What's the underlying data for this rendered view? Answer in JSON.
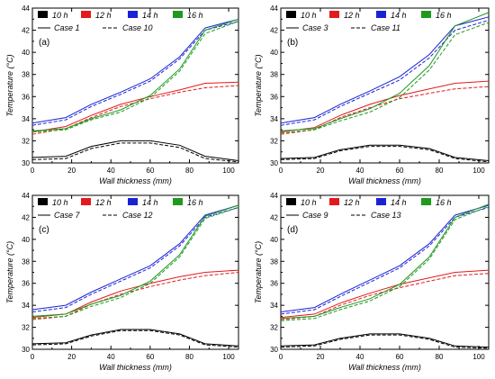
{
  "figure": {
    "colors": {
      "10 h": "#000000",
      "12 h": "#e31a1c",
      "14 h": "#1a22d6",
      "16 h": "#1f9a1f"
    }
  },
  "chart_data": [
    {
      "type": "line",
      "panel_label": "(a)",
      "xlabel": "Wall thickness (mm)",
      "ylabel": "Temperature (°C)",
      "xlim": [
        0,
        105
      ],
      "ylim": [
        30,
        44
      ],
      "x_ticks": [
        "0",
        "20",
        "40",
        "60",
        "80",
        "100"
      ],
      "y_ticks": [
        "30",
        "32",
        "34",
        "36",
        "38",
        "40",
        "42",
        "44"
      ],
      "grid": false,
      "legend_position": "top-left",
      "legend_colors": [
        "10 h",
        "12 h",
        "14 h",
        "16 h"
      ],
      "legend_styles": [
        "Case 1",
        "Case 10"
      ],
      "series": [
        {
          "name": "10 h",
          "style": "Case 1",
          "x": [
            0,
            17,
            30,
            45,
            60,
            75,
            88,
            105
          ],
          "y": [
            30.5,
            30.6,
            31.5,
            32.0,
            32.0,
            31.6,
            30.6,
            30.2
          ]
        },
        {
          "name": "10 h",
          "style": "Case 10",
          "x": [
            0,
            17,
            30,
            45,
            60,
            75,
            88,
            105
          ],
          "y": [
            30.3,
            30.4,
            31.3,
            31.8,
            31.8,
            31.4,
            30.4,
            30.1
          ]
        },
        {
          "name": "12 h",
          "style": "Case 1",
          "x": [
            0,
            17,
            30,
            45,
            60,
            75,
            88,
            105
          ],
          "y": [
            32.8,
            33.3,
            34.3,
            35.3,
            36.0,
            36.6,
            37.2,
            37.3
          ]
        },
        {
          "name": "12 h",
          "style": "Case 10",
          "x": [
            0,
            17,
            30,
            45,
            60,
            75,
            88,
            105
          ],
          "y": [
            32.6,
            33.1,
            34.1,
            35.1,
            35.8,
            36.4,
            36.8,
            37.0
          ]
        },
        {
          "name": "14 h",
          "style": "Case 1",
          "x": [
            0,
            17,
            30,
            45,
            60,
            75,
            88,
            105
          ],
          "y": [
            33.6,
            34.1,
            35.3,
            36.4,
            37.6,
            39.6,
            42.2,
            43.0
          ]
        },
        {
          "name": "14 h",
          "style": "Case 10",
          "x": [
            0,
            17,
            30,
            45,
            60,
            75,
            88,
            105
          ],
          "y": [
            33.4,
            33.9,
            35.1,
            36.2,
            37.4,
            39.4,
            42.0,
            42.8
          ]
        },
        {
          "name": "16 h",
          "style": "Case 1",
          "x": [
            0,
            17,
            30,
            45,
            60,
            75,
            88,
            105
          ],
          "y": [
            32.9,
            33.1,
            34.0,
            34.8,
            36.1,
            38.5,
            42.0,
            43.0
          ]
        },
        {
          "name": "16 h",
          "style": "Case 10",
          "x": [
            0,
            17,
            30,
            45,
            60,
            75,
            88,
            105
          ],
          "y": [
            32.8,
            33.0,
            33.9,
            34.6,
            35.9,
            38.3,
            41.7,
            42.8
          ]
        }
      ]
    },
    {
      "type": "line",
      "panel_label": "(b)",
      "xlabel": "Wall thickness (mm)",
      "ylabel": "Temperature (°C)",
      "xlim": [
        0,
        105
      ],
      "ylim": [
        30,
        44
      ],
      "x_ticks": [
        "0",
        "20",
        "40",
        "60",
        "80",
        "100"
      ],
      "y_ticks": [
        "30",
        "32",
        "34",
        "36",
        "38",
        "40",
        "42",
        "44"
      ],
      "grid": false,
      "legend_position": "top-left",
      "legend_colors": [
        "10 h",
        "12 h",
        "14 h",
        "16 h"
      ],
      "legend_styles": [
        "Case 3",
        "Case 11"
      ],
      "series": [
        {
          "name": "10 h",
          "style": "Case 3",
          "x": [
            0,
            17,
            30,
            45,
            60,
            75,
            88,
            105
          ],
          "y": [
            30.4,
            30.5,
            31.2,
            31.6,
            31.6,
            31.3,
            30.5,
            30.2
          ]
        },
        {
          "name": "10 h",
          "style": "Case 11",
          "x": [
            0,
            17,
            30,
            45,
            60,
            75,
            88,
            105
          ],
          "y": [
            30.3,
            30.4,
            31.1,
            31.5,
            31.5,
            31.2,
            30.4,
            30.1
          ]
        },
        {
          "name": "12 h",
          "style": "Case 3",
          "x": [
            0,
            17,
            30,
            45,
            60,
            75,
            88,
            105
          ],
          "y": [
            32.8,
            33.2,
            34.3,
            35.3,
            36.1,
            36.7,
            37.2,
            37.4
          ]
        },
        {
          "name": "12 h",
          "style": "Case 11",
          "x": [
            0,
            17,
            30,
            45,
            60,
            75,
            88,
            105
          ],
          "y": [
            32.6,
            33.0,
            34.1,
            35.0,
            35.8,
            36.3,
            36.7,
            36.9
          ]
        },
        {
          "name": "14 h",
          "style": "Case 3",
          "x": [
            0,
            17,
            30,
            45,
            60,
            75,
            88,
            105
          ],
          "y": [
            33.6,
            34.1,
            35.3,
            36.5,
            37.8,
            39.8,
            42.4,
            43.2
          ]
        },
        {
          "name": "14 h",
          "style": "Case 11",
          "x": [
            0,
            17,
            30,
            45,
            60,
            75,
            88,
            105
          ],
          "y": [
            33.4,
            33.9,
            35.1,
            36.3,
            37.5,
            39.5,
            42.0,
            42.9
          ]
        },
        {
          "name": "16 h",
          "style": "Case 3",
          "x": [
            0,
            17,
            30,
            45,
            60,
            75,
            88,
            105
          ],
          "y": [
            32.9,
            33.1,
            34.0,
            34.9,
            36.3,
            38.8,
            42.4,
            43.6
          ]
        },
        {
          "name": "16 h",
          "style": "Case 11",
          "x": [
            0,
            17,
            30,
            45,
            60,
            75,
            88,
            105
          ],
          "y": [
            32.7,
            33.0,
            33.8,
            34.6,
            35.9,
            38.4,
            41.6,
            42.7
          ]
        }
      ]
    },
    {
      "type": "line",
      "panel_label": "(c)",
      "xlabel": "Wall thickness (mm)",
      "ylabel": "Temperature (°C)",
      "xlim": [
        0,
        105
      ],
      "ylim": [
        30,
        44
      ],
      "x_ticks": [
        "0",
        "20",
        "40",
        "60",
        "80",
        "100"
      ],
      "y_ticks": [
        "30",
        "32",
        "34",
        "36",
        "38",
        "40",
        "42",
        "44"
      ],
      "grid": false,
      "legend_position": "top-left",
      "legend_colors": [
        "10 h",
        "12 h",
        "14 h",
        "16 h"
      ],
      "legend_styles": [
        "Case 7",
        "Case 12"
      ],
      "series": [
        {
          "name": "10 h",
          "style": "Case 7",
          "x": [
            0,
            17,
            30,
            45,
            60,
            75,
            88,
            105
          ],
          "y": [
            30.5,
            30.6,
            31.3,
            31.8,
            31.8,
            31.4,
            30.5,
            30.3
          ]
        },
        {
          "name": "10 h",
          "style": "Case 12",
          "x": [
            0,
            17,
            30,
            45,
            60,
            75,
            88,
            105
          ],
          "y": [
            30.4,
            30.5,
            31.2,
            31.7,
            31.7,
            31.3,
            30.4,
            30.2
          ]
        },
        {
          "name": "12 h",
          "style": "Case 7",
          "x": [
            0,
            17,
            30,
            45,
            60,
            75,
            88,
            105
          ],
          "y": [
            32.9,
            33.2,
            34.3,
            35.3,
            36.0,
            36.6,
            37.0,
            37.2
          ]
        },
        {
          "name": "12 h",
          "style": "Case 12",
          "x": [
            0,
            17,
            30,
            45,
            60,
            75,
            88,
            105
          ],
          "y": [
            32.7,
            33.0,
            34.1,
            35.0,
            35.7,
            36.3,
            36.7,
            37.0
          ]
        },
        {
          "name": "14 h",
          "style": "Case 7",
          "x": [
            0,
            17,
            30,
            45,
            60,
            75,
            88,
            105
          ],
          "y": [
            33.6,
            34.0,
            35.2,
            36.4,
            37.6,
            39.6,
            42.2,
            43.1
          ]
        },
        {
          "name": "14 h",
          "style": "Case 12",
          "x": [
            0,
            17,
            30,
            45,
            60,
            75,
            88,
            105
          ],
          "y": [
            33.4,
            33.8,
            35.0,
            36.2,
            37.4,
            39.4,
            42.0,
            42.9
          ]
        },
        {
          "name": "16 h",
          "style": "Case 7",
          "x": [
            0,
            17,
            30,
            45,
            60,
            75,
            88,
            105
          ],
          "y": [
            33.0,
            33.2,
            34.1,
            34.9,
            36.2,
            38.6,
            42.1,
            43.1
          ]
        },
        {
          "name": "16 h",
          "style": "Case 12",
          "x": [
            0,
            17,
            30,
            45,
            60,
            75,
            88,
            105
          ],
          "y": [
            32.8,
            33.0,
            33.9,
            34.7,
            36.0,
            38.4,
            41.9,
            42.9
          ]
        }
      ]
    },
    {
      "type": "line",
      "panel_label": "(d)",
      "xlabel": "Wall thickness (mm)",
      "ylabel": "Temperature (°C)",
      "xlim": [
        0,
        105
      ],
      "ylim": [
        30,
        44
      ],
      "x_ticks": [
        "0",
        "20",
        "40",
        "60",
        "80",
        "100"
      ],
      "y_ticks": [
        "30",
        "32",
        "34",
        "36",
        "38",
        "40",
        "42",
        "44"
      ],
      "grid": false,
      "legend_position": "top-left",
      "legend_colors": [
        "10 h",
        "12 h",
        "14 h",
        "16 h"
      ],
      "legend_styles": [
        "Case 9",
        "Case 13"
      ],
      "series": [
        {
          "name": "10 h",
          "style": "Case 9",
          "x": [
            0,
            17,
            30,
            45,
            60,
            75,
            88,
            105
          ],
          "y": [
            30.3,
            30.4,
            31.0,
            31.4,
            31.4,
            31.0,
            30.3,
            30.2
          ]
        },
        {
          "name": "10 h",
          "style": "Case 13",
          "x": [
            0,
            17,
            30,
            45,
            60,
            75,
            88,
            105
          ],
          "y": [
            30.2,
            30.3,
            30.9,
            31.3,
            31.3,
            30.9,
            30.2,
            30.1
          ]
        },
        {
          "name": "12 h",
          "style": "Case 9",
          "x": [
            0,
            17,
            30,
            45,
            60,
            75,
            88,
            105
          ],
          "y": [
            32.9,
            33.2,
            34.2,
            35.1,
            35.9,
            36.5,
            37.0,
            37.2
          ]
        },
        {
          "name": "12 h",
          "style": "Case 13",
          "x": [
            0,
            17,
            30,
            45,
            60,
            75,
            88,
            105
          ],
          "y": [
            32.7,
            33.0,
            34.0,
            34.9,
            35.6,
            36.2,
            36.7,
            36.9
          ]
        },
        {
          "name": "14 h",
          "style": "Case 9",
          "x": [
            0,
            17,
            30,
            45,
            60,
            75,
            88,
            105
          ],
          "y": [
            33.4,
            33.8,
            35.0,
            36.3,
            37.6,
            39.6,
            42.2,
            43.1
          ]
        },
        {
          "name": "14 h",
          "style": "Case 13",
          "x": [
            0,
            17,
            30,
            45,
            60,
            75,
            88,
            105
          ],
          "y": [
            33.2,
            33.6,
            34.8,
            36.1,
            37.4,
            39.4,
            42.0,
            42.9
          ]
        },
        {
          "name": "16 h",
          "style": "Case 9",
          "x": [
            0,
            17,
            30,
            45,
            60,
            75,
            88,
            105
          ],
          "y": [
            32.8,
            33.0,
            33.8,
            34.6,
            35.9,
            38.4,
            42.0,
            43.2
          ]
        },
        {
          "name": "16 h",
          "style": "Case 13",
          "x": [
            0,
            17,
            30,
            45,
            60,
            75,
            88,
            105
          ],
          "y": [
            32.6,
            32.8,
            33.6,
            34.4,
            35.7,
            38.2,
            41.8,
            43.0
          ]
        }
      ]
    }
  ]
}
